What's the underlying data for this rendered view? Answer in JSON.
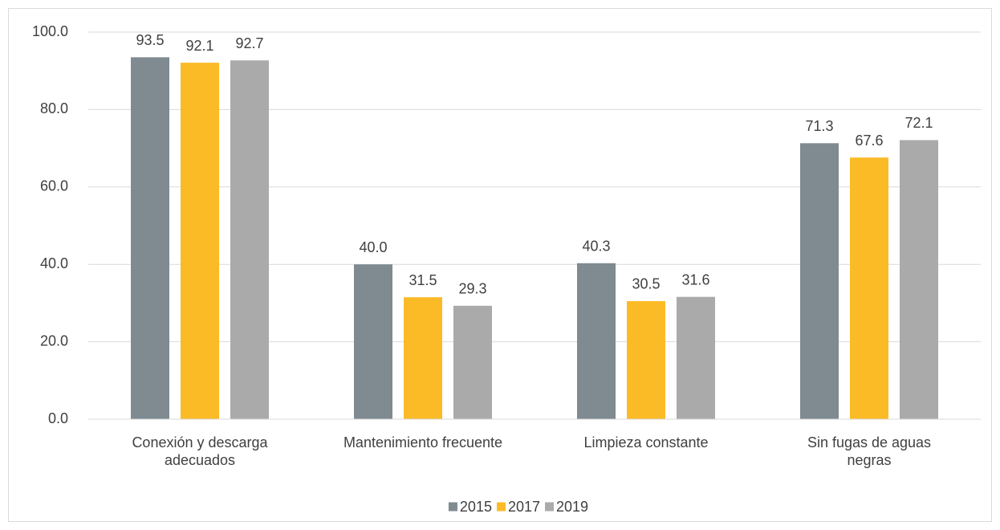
{
  "chart_data": {
    "type": "bar",
    "categories": [
      "Conexión y descarga\nadecuados",
      "Mantenimiento frecuente",
      "Limpieza constante",
      "Sin fugas de aguas\nnegras"
    ],
    "series": [
      {
        "name": "2015",
        "color": "#7f8a91",
        "values": [
          93.5,
          40.0,
          40.3,
          71.3
        ],
        "value_labels": [
          "93.5",
          "40.0",
          "40.3",
          "71.3"
        ]
      },
      {
        "name": "2017",
        "color": "#fbbb27",
        "values": [
          92.1,
          31.5,
          30.5,
          67.6
        ],
        "value_labels": [
          "92.1",
          "31.5",
          "30.5",
          "67.6"
        ]
      },
      {
        "name": "2019",
        "color": "#aaaaaa",
        "values": [
          92.7,
          29.3,
          31.6,
          72.1
        ],
        "value_labels": [
          "92.7",
          "29.3",
          "31.6",
          "72.1"
        ]
      }
    ],
    "ylim": [
      0,
      100
    ],
    "yticks": [
      {
        "value": 0,
        "label": "0.0"
      },
      {
        "value": 20,
        "label": "20.0"
      },
      {
        "value": 40,
        "label": "40.0"
      },
      {
        "value": 60,
        "label": "60.0"
      },
      {
        "value": 80,
        "label": "80.0"
      },
      {
        "value": 100,
        "label": "100.0"
      }
    ],
    "grid": true,
    "legend": "bottom"
  }
}
